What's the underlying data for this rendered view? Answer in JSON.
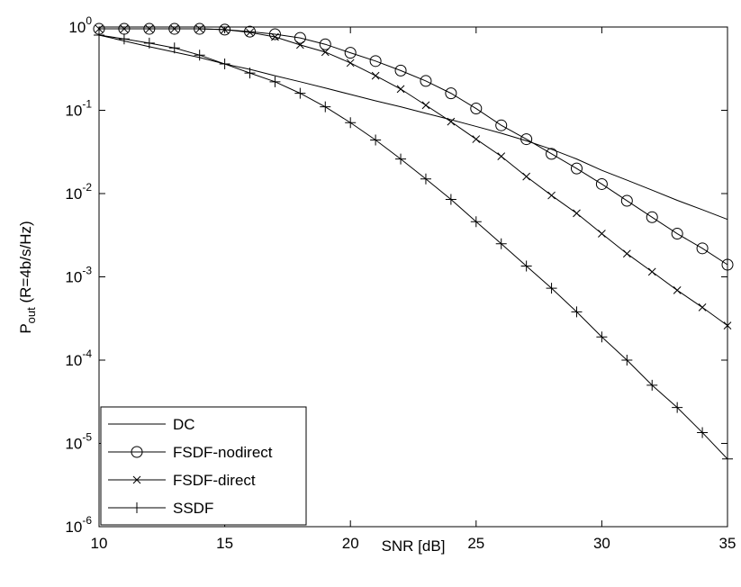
{
  "chart_data": {
    "type": "line",
    "xlabel": "SNR [dB]",
    "ylabel": {
      "main": "P",
      "sub": "out",
      "rest": " (R=4b/s/Hz)"
    },
    "x": [
      10,
      11,
      12,
      13,
      14,
      15,
      16,
      17,
      18,
      19,
      20,
      21,
      22,
      23,
      24,
      25,
      26,
      27,
      28,
      29,
      30,
      31,
      32,
      33,
      34,
      35
    ],
    "xlim": [
      10,
      35
    ],
    "xticks": [
      10,
      15,
      20,
      25,
      30,
      35
    ],
    "ylim": [
      1e-06,
      1
    ],
    "log_y": true,
    "yticks": [
      {
        "value": 1e-06,
        "label": "10",
        "exponent": "-6"
      },
      {
        "value": 1e-05,
        "label": "10",
        "exponent": "-5"
      },
      {
        "value": 0.0001,
        "label": "10",
        "exponent": "-4"
      },
      {
        "value": 0.001,
        "label": "10",
        "exponent": "-3"
      },
      {
        "value": 0.01,
        "label": "10",
        "exponent": "-2"
      },
      {
        "value": 0.1,
        "label": "10",
        "exponent": "-1"
      },
      {
        "value": 1,
        "label": "10",
        "exponent": "0"
      }
    ],
    "legend": "lower left",
    "series": [
      {
        "name": "DC",
        "color": "#000000",
        "marker": "none",
        "values": [
          0.8,
          0.68,
          0.58,
          0.5,
          0.43,
          0.36,
          0.31,
          0.26,
          0.22,
          0.185,
          0.155,
          0.13,
          0.11,
          0.092,
          0.077,
          0.064,
          0.053,
          0.043,
          0.034,
          0.026,
          0.019,
          0.0145,
          0.011,
          0.0083,
          0.0064,
          0.0049
        ]
      },
      {
        "name": "FSDF-nodirect",
        "color": "#000000",
        "marker": "circle",
        "values": [
          0.95,
          0.95,
          0.95,
          0.95,
          0.95,
          0.93,
          0.88,
          0.82,
          0.74,
          0.62,
          0.49,
          0.39,
          0.3,
          0.225,
          0.16,
          0.105,
          0.066,
          0.045,
          0.03,
          0.02,
          0.013,
          0.0082,
          0.0052,
          0.0033,
          0.0022,
          0.0014
        ]
      },
      {
        "name": "FSDF-direct",
        "color": "#000000",
        "marker": "x",
        "values": [
          0.95,
          0.95,
          0.95,
          0.95,
          0.95,
          0.93,
          0.86,
          0.76,
          0.61,
          0.5,
          0.37,
          0.26,
          0.18,
          0.115,
          0.073,
          0.045,
          0.028,
          0.016,
          0.0095,
          0.0058,
          0.0033,
          0.0019,
          0.00115,
          0.00069,
          0.00043,
          0.00026
        ]
      },
      {
        "name": "SSDF",
        "color": "#000000",
        "marker": "plus",
        "values": [
          0.8,
          0.72,
          0.64,
          0.56,
          0.46,
          0.36,
          0.28,
          0.22,
          0.16,
          0.11,
          0.071,
          0.044,
          0.026,
          0.015,
          0.0085,
          0.0046,
          0.0025,
          0.00135,
          0.00073,
          0.00038,
          0.00019,
          0.0001,
          5e-05,
          2.7e-05,
          1.35e-05,
          6.5e-06
        ]
      }
    ]
  }
}
